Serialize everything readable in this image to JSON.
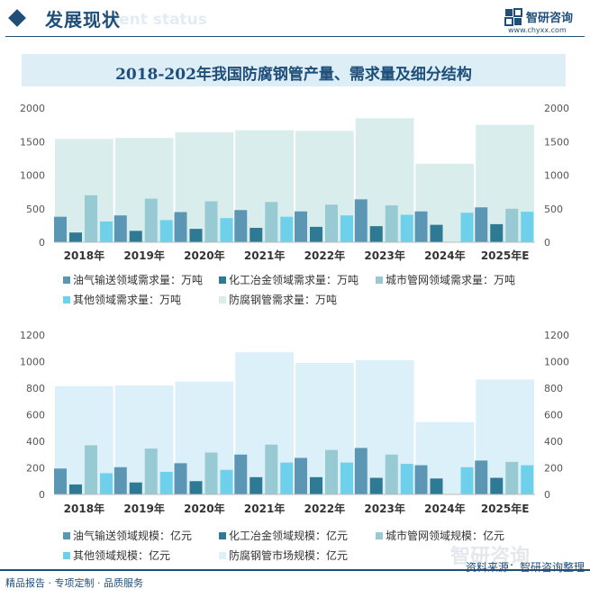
{
  "header": {
    "title": "发展现状",
    "ghost_text": "nent status"
  },
  "logo": {
    "name": "智研咨询",
    "url": "www.chyxx.com",
    "icon": "zhiyan-logo-icon"
  },
  "chart_title": "2018-202年我国防腐钢管产量、需求量及细分结构",
  "chart_data": [
    {
      "type": "bar",
      "categories": [
        "2018年",
        "2019年",
        "2020年",
        "2021年",
        "2022年",
        "2023年",
        "2024年",
        "2025年E"
      ],
      "ylim": [
        0,
        2000
      ],
      "yticks": [
        0,
        500,
        1000,
        1500,
        2000
      ],
      "background_series": {
        "name": "防腐钢管需求量：万吨",
        "values": [
          1540,
          1555,
          1640,
          1670,
          1660,
          1850,
          1170,
          1750
        ],
        "color": "#d9eeec"
      },
      "series": [
        {
          "name": "油气输送领域需求量：万吨",
          "values": [
            380,
            400,
            450,
            480,
            460,
            640,
            460,
            520
          ],
          "color": "#5b96b5"
        },
        {
          "name": "化工冶金领域需求量：万吨",
          "values": [
            145,
            170,
            200,
            215,
            230,
            240,
            260,
            270
          ],
          "color": "#2e7a95"
        },
        {
          "name": "城市管网领域需求量：万吨",
          "values": [
            700,
            650,
            610,
            600,
            560,
            550,
            null,
            500
          ],
          "color": "#98cad3"
        },
        {
          "name": "其他领域需求量：万吨",
          "values": [
            310,
            330,
            360,
            380,
            400,
            410,
            440,
            455
          ],
          "color": "#6fd0ec"
        }
      ]
    },
    {
      "type": "bar",
      "categories": [
        "2018年",
        "2019年",
        "2020年",
        "2021年",
        "2022年",
        "2023年",
        "2024年",
        "2025年E"
      ],
      "ylim": [
        0,
        1200
      ],
      "yticks": [
        0,
        200,
        400,
        600,
        800,
        1000,
        1200
      ],
      "background_series": {
        "name": "防腐钢管市场规模：亿元",
        "values": [
          815,
          820,
          850,
          1070,
          990,
          1010,
          545,
          865
        ],
        "color": "#dcf0fa"
      },
      "series": [
        {
          "name": "油气输送领域规模：亿元",
          "values": [
            195,
            205,
            235,
            300,
            275,
            350,
            220,
            255
          ],
          "color": "#5b96b5"
        },
        {
          "name": "化工冶金领域规模：亿元",
          "values": [
            75,
            90,
            100,
            130,
            130,
            125,
            120,
            125
          ],
          "color": "#2e7a95"
        },
        {
          "name": "城市管网领域规模：亿元",
          "values": [
            370,
            345,
            315,
            375,
            335,
            300,
            null,
            245
          ],
          "color": "#98cad3"
        },
        {
          "name": "其他领域规模：亿元",
          "values": [
            160,
            170,
            185,
            240,
            240,
            230,
            205,
            220
          ],
          "color": "#6fd0ec"
        }
      ]
    }
  ],
  "footer": {
    "left": "精品报告 · 专项定制 · 品质服务",
    "right": "资料来源：智研咨询整理",
    "watermark": "智研咨询"
  }
}
